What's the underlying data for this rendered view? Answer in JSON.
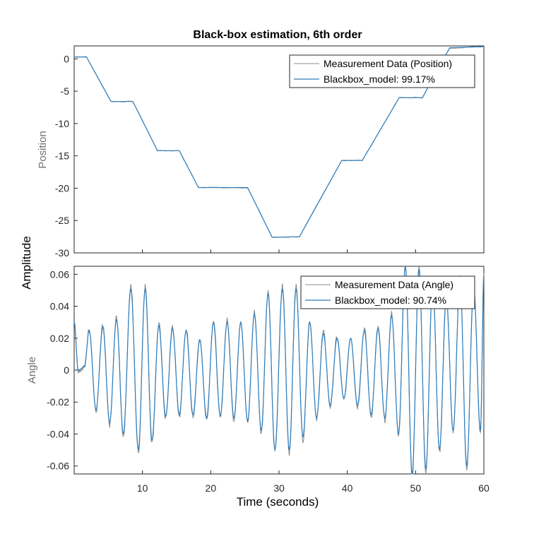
{
  "chart_data": {
    "title": "Black-box estimation, 6th order",
    "xlabel": "Time (seconds)",
    "ylabel": "Amplitude",
    "x_range": [
      0,
      60
    ],
    "x_ticks": [
      10,
      20,
      30,
      40,
      50,
      60
    ],
    "colors": {
      "measured": "#8c8c8c",
      "model": "#2f7ebc"
    },
    "subplots": [
      {
        "type": "line",
        "ylabel": "Position",
        "ylim": [
          -30,
          2
        ],
        "y_ticks": [
          0,
          -5,
          -10,
          -15,
          -20,
          -25,
          -30
        ],
        "legend_position": "top-right",
        "series": [
          {
            "name": "Measurement Data (Position)",
            "color": "#8c8c8c"
          },
          {
            "name": "Blackbox_model: 99.17%",
            "color": "#2f7ebc"
          }
        ],
        "x": [
          0,
          1.8,
          5.4,
          8.6,
          12.2,
          15.4,
          18.2,
          25.4,
          29.0,
          33.0,
          39.2,
          42.2,
          47.6,
          51.0,
          55.0,
          60.0
        ],
        "y": [
          0.3,
          0.3,
          -6.6,
          -6.6,
          -14.2,
          -14.2,
          -19.9,
          -19.9,
          -27.6,
          -27.5,
          -15.7,
          -15.7,
          -6.0,
          -6.0,
          1.7,
          1.9
        ]
      },
      {
        "type": "line",
        "ylabel": "Angle",
        "ylim": [
          -0.065,
          0.065
        ],
        "y_ticks": [
          0.06,
          0.04,
          0.02,
          0,
          -0.02,
          -0.04,
          -0.06
        ],
        "legend_position": "top-right",
        "series": [
          {
            "name": "Measurement Data (Angle)",
            "color": "#8c8c8c"
          },
          {
            "name": "Blackbox_model: 90.74%",
            "color": "#2f7ebc"
          }
        ],
        "peaks": [
          [
            0,
            0.03
          ],
          [
            0.6,
            0.0
          ],
          [
            1.5,
            0.002
          ],
          [
            2.2,
            0.025
          ],
          [
            3.2,
            -0.025
          ],
          [
            4.2,
            0.027
          ],
          [
            5.2,
            -0.033
          ],
          [
            6.2,
            0.032
          ],
          [
            7.2,
            -0.04
          ],
          [
            8.3,
            0.051
          ],
          [
            9.4,
            -0.05
          ],
          [
            10.4,
            0.051
          ],
          [
            11.4,
            -0.044
          ],
          [
            12.4,
            0.028
          ],
          [
            13.4,
            -0.029
          ],
          [
            14.4,
            0.026
          ],
          [
            15.4,
            -0.028
          ],
          [
            16.4,
            0.025
          ],
          [
            17.4,
            -0.028
          ],
          [
            18.4,
            0.019
          ],
          [
            19.4,
            -0.03
          ],
          [
            20.4,
            0.03
          ],
          [
            21.4,
            -0.029
          ],
          [
            22.4,
            0.03
          ],
          [
            23.4,
            -0.03
          ],
          [
            24.4,
            0.03
          ],
          [
            25.4,
            -0.032
          ],
          [
            26.4,
            0.035
          ],
          [
            27.4,
            -0.038
          ],
          [
            28.4,
            0.048
          ],
          [
            29.4,
            -0.05
          ],
          [
            30.5,
            0.051
          ],
          [
            31.5,
            -0.05
          ],
          [
            32.5,
            0.051
          ],
          [
            33.5,
            -0.042
          ],
          [
            34.5,
            0.03
          ],
          [
            35.5,
            -0.03
          ],
          [
            36.5,
            0.023
          ],
          [
            37.5,
            -0.022
          ],
          [
            38.5,
            0.02
          ],
          [
            39.5,
            -0.018
          ],
          [
            40.5,
            0.02
          ],
          [
            41.5,
            -0.022
          ],
          [
            42.5,
            0.025
          ],
          [
            43.5,
            -0.028
          ],
          [
            44.5,
            0.026
          ],
          [
            45.5,
            -0.03
          ],
          [
            46.5,
            0.034
          ],
          [
            47.5,
            -0.04
          ],
          [
            48.5,
            0.065
          ],
          [
            49.5,
            -0.065
          ],
          [
            50.5,
            0.063
          ],
          [
            51.5,
            -0.062
          ],
          [
            52.5,
            0.055
          ],
          [
            53.5,
            -0.05
          ],
          [
            54.5,
            0.045
          ],
          [
            55.5,
            -0.038
          ],
          [
            56.5,
            0.056
          ],
          [
            57.5,
            -0.06
          ],
          [
            58.5,
            0.052
          ],
          [
            59.5,
            -0.038
          ],
          [
            60,
            0.058
          ]
        ]
      }
    ]
  }
}
